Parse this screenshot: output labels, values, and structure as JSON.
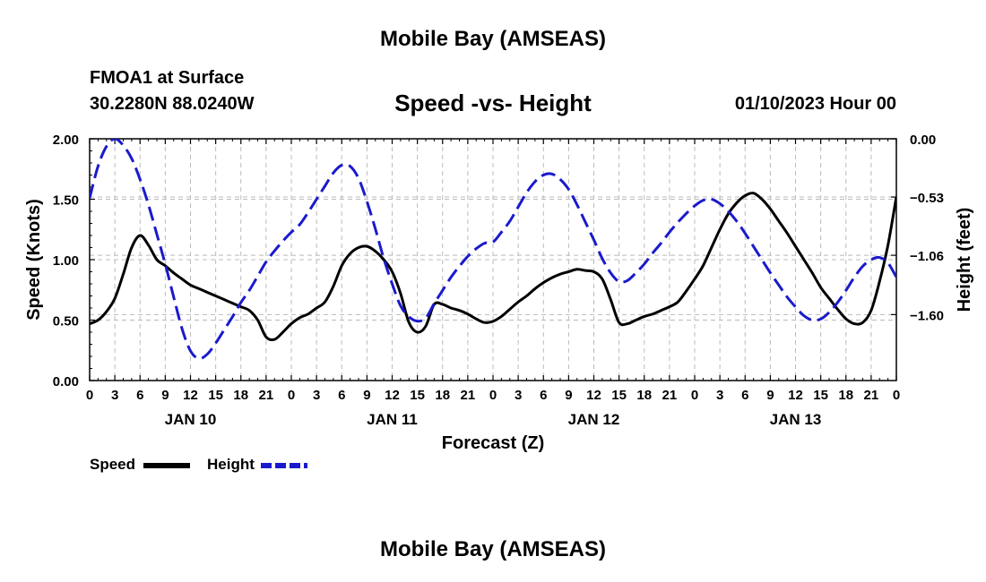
{
  "header": {
    "title": "Mobile Bay (AMSEAS)",
    "station": "FMOA1 at Surface",
    "coords": "30.2280N  88.0240W",
    "subtitle": "Speed -vs- Height",
    "datetime": "01/10/2023 Hour 00"
  },
  "footer": {
    "title": "Mobile Bay (AMSEAS)"
  },
  "legend": {
    "speed": "Speed",
    "height": "Height"
  },
  "colors": {
    "speed": "#000000",
    "height": "#1a1acc",
    "grid": "#bbbbbb"
  },
  "chart_data": {
    "type": "line",
    "title": "Speed -vs- Height",
    "xlabel": "Forecast (Z)",
    "ylabel": "Speed (Knots)",
    "y2label": "Height (feet)",
    "xlim": [
      0,
      96
    ],
    "ylim": [
      0,
      2.0
    ],
    "y2lim": [
      -2.2,
      0.0
    ],
    "x_ticks": [
      0,
      3,
      6,
      9,
      12,
      15,
      18,
      21,
      24,
      27,
      30,
      33,
      36,
      39,
      42,
      45,
      48,
      51,
      54,
      57,
      60,
      63,
      66,
      69,
      72,
      75,
      78,
      81,
      84,
      87,
      90,
      93,
      96
    ],
    "x_tick_labels": [
      "0",
      "3",
      "6",
      "9",
      "12",
      "15",
      "18",
      "21",
      "0",
      "3",
      "6",
      "9",
      "12",
      "15",
      "18",
      "21",
      "0",
      "3",
      "6",
      "9",
      "12",
      "15",
      "18",
      "21",
      "0",
      "3",
      "6",
      "9",
      "12",
      "15",
      "18",
      "21",
      "0"
    ],
    "day_labels": [
      {
        "x": 12,
        "label": "JAN 10"
      },
      {
        "x": 36,
        "label": "JAN 11"
      },
      {
        "x": 60,
        "label": "JAN 12"
      },
      {
        "x": 84,
        "label": "JAN 13"
      }
    ],
    "y_ticks": [
      0.0,
      0.5,
      1.0,
      1.5,
      2.0
    ],
    "y_tick_labels": [
      "0.00",
      "0.50",
      "1.00",
      "1.50",
      "2.00"
    ],
    "y2_ticks": [
      0.0,
      -0.53,
      -1.06,
      -1.6
    ],
    "y2_tick_labels": [
      "0.00",
      "−0.53",
      "−1.06",
      "−1.60"
    ],
    "series": [
      {
        "name": "Speed",
        "axis": "left",
        "style": "solid",
        "x": [
          0,
          1,
          2,
          3,
          4,
          5,
          6,
          7,
          8,
          9,
          10,
          11,
          12,
          13,
          14,
          15,
          16,
          17,
          18,
          19,
          20,
          21,
          22,
          23,
          24,
          25,
          26,
          27,
          28,
          29,
          30,
          31,
          32,
          33,
          34,
          35,
          36,
          37,
          38,
          39,
          40,
          41,
          42,
          43,
          44,
          45,
          46,
          47,
          48,
          49,
          50,
          51,
          52,
          53,
          54,
          55,
          56,
          57,
          58,
          59,
          60,
          61,
          62,
          63,
          64,
          65,
          66,
          67,
          68,
          69,
          70,
          71,
          72,
          73,
          74,
          75,
          76,
          77,
          78,
          79,
          80,
          81,
          82,
          83,
          84,
          85,
          86,
          87,
          88,
          89,
          90,
          91,
          92,
          93,
          94,
          95,
          96
        ],
        "values": [
          0.47,
          0.5,
          0.57,
          0.68,
          0.88,
          1.1,
          1.2,
          1.12,
          1.0,
          0.95,
          0.89,
          0.84,
          0.79,
          0.76,
          0.73,
          0.7,
          0.67,
          0.64,
          0.61,
          0.58,
          0.5,
          0.36,
          0.34,
          0.4,
          0.47,
          0.52,
          0.55,
          0.6,
          0.65,
          0.78,
          0.95,
          1.05,
          1.1,
          1.11,
          1.07,
          1.0,
          0.9,
          0.72,
          0.48,
          0.4,
          0.45,
          0.63,
          0.63,
          0.6,
          0.58,
          0.55,
          0.51,
          0.48,
          0.49,
          0.53,
          0.59,
          0.65,
          0.7,
          0.76,
          0.81,
          0.85,
          0.88,
          0.9,
          0.92,
          0.91,
          0.9,
          0.84,
          0.67,
          0.48,
          0.47,
          0.5,
          0.53,
          0.55,
          0.58,
          0.61,
          0.65,
          0.74,
          0.84,
          0.95,
          1.1,
          1.25,
          1.38,
          1.47,
          1.53,
          1.55,
          1.5,
          1.42,
          1.32,
          1.22,
          1.11,
          1.0,
          0.89,
          0.77,
          0.68,
          0.59,
          0.51,
          0.47,
          0.48,
          0.58,
          0.82,
          1.12,
          1.52
        ]
      },
      {
        "name": "Height",
        "axis": "right",
        "style": "dashed",
        "x": [
          0,
          1,
          2,
          3,
          4,
          5,
          6,
          7,
          8,
          9,
          10,
          11,
          12,
          13,
          14,
          15,
          16,
          17,
          18,
          19,
          20,
          21,
          22,
          23,
          24,
          25,
          26,
          27,
          28,
          29,
          30,
          31,
          32,
          33,
          34,
          35,
          36,
          37,
          38,
          39,
          40,
          41,
          42,
          43,
          44,
          45,
          46,
          47,
          48,
          49,
          50,
          51,
          52,
          53,
          54,
          55,
          56,
          57,
          58,
          59,
          60,
          61,
          62,
          63,
          64,
          65,
          66,
          67,
          68,
          69,
          70,
          71,
          72,
          73,
          74,
          75,
          76,
          77,
          78,
          79,
          80,
          81,
          82,
          83,
          84,
          85,
          86,
          87,
          88,
          89,
          90,
          91,
          92,
          93,
          94,
          95,
          96
        ],
        "values": [
          -0.54,
          -0.25,
          -0.07,
          0.0,
          -0.06,
          -0.18,
          -0.37,
          -0.6,
          -0.87,
          -1.14,
          -1.44,
          -1.73,
          -1.93,
          -2.0,
          -1.96,
          -1.86,
          -1.74,
          -1.62,
          -1.49,
          -1.38,
          -1.25,
          -1.12,
          -1.02,
          -0.93,
          -0.85,
          -0.78,
          -0.67,
          -0.55,
          -0.43,
          -0.31,
          -0.24,
          -0.25,
          -0.36,
          -0.57,
          -0.82,
          -1.09,
          -1.32,
          -1.52,
          -1.62,
          -1.66,
          -1.63,
          -1.5,
          -1.38,
          -1.26,
          -1.16,
          -1.07,
          -1.0,
          -0.95,
          -0.94,
          -0.85,
          -0.75,
          -0.62,
          -0.49,
          -0.39,
          -0.33,
          -0.32,
          -0.37,
          -0.46,
          -0.6,
          -0.76,
          -0.92,
          -1.09,
          -1.22,
          -1.3,
          -1.29,
          -1.22,
          -1.14,
          -1.04,
          -0.95,
          -0.85,
          -0.76,
          -0.68,
          -0.61,
          -0.56,
          -0.55,
          -0.59,
          -0.66,
          -0.75,
          -0.86,
          -0.98,
          -1.1,
          -1.22,
          -1.33,
          -1.44,
          -1.53,
          -1.61,
          -1.65,
          -1.64,
          -1.58,
          -1.49,
          -1.38,
          -1.26,
          -1.16,
          -1.1,
          -1.08,
          -1.13,
          -1.26
        ]
      }
    ]
  }
}
